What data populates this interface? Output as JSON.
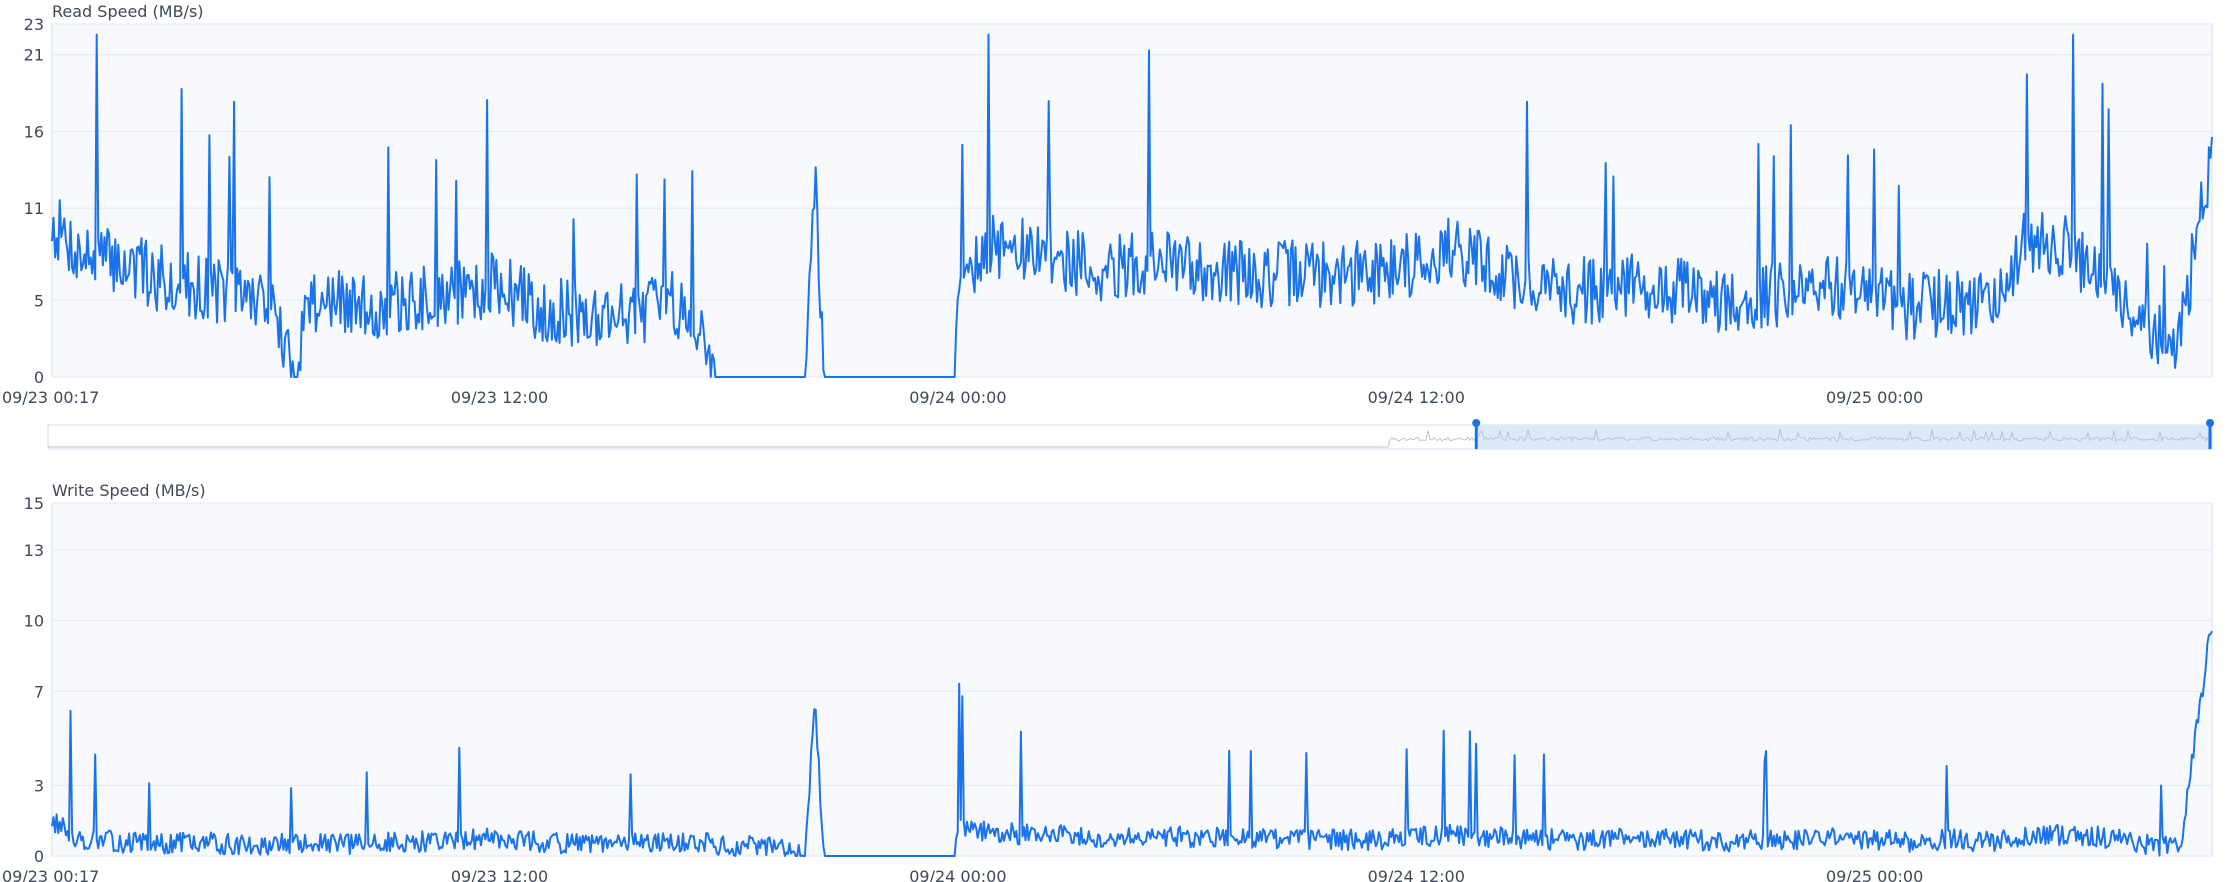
{
  "colors": {
    "line": "#1a73e8",
    "plot_bg": "#f8f9fd",
    "plot_border": "#d5deec",
    "grid": "#e5e9f1",
    "nav_fill": "#dde9f8",
    "nav_line": "#b7c5d8"
  },
  "navigator": {
    "selected_range_fraction": [
      0.66,
      1.0
    ]
  },
  "chart_data": [
    {
      "type": "line",
      "title": "Read Speed (MB/s)",
      "xlabel": "",
      "ylabel": "",
      "ylim": [
        0,
        23
      ],
      "y_ticks": [
        0,
        5,
        11,
        16,
        21,
        23
      ],
      "x_range": [
        "09/23 00:17",
        "09/25 08:50"
      ],
      "x_ticks": [
        "09/23 00:17",
        "09/23 12:00",
        "09/24 00:00",
        "09/24 12:00",
        "09/25 00:00"
      ],
      "grid": true,
      "series": [
        {
          "x": [
            "09/23 00:17",
            "09/23 01:00",
            "09/23 02:00",
            "09/23 03:00",
            "09/23 04:00",
            "09/23 05:00",
            "09/23 06:00",
            "09/23 06:35",
            "09/23 07:00",
            "09/23 08:00",
            "09/23 09:00",
            "09/23 10:00",
            "09/23 11:00",
            "09/23 12:00",
            "09/23 13:00",
            "09/23 14:00",
            "09/23 15:00",
            "09/23 16:00",
            "09/23 17:00",
            "09/23 17:40",
            "09/23 18:00",
            "09/23 19:00",
            "09/23 20:00",
            "09/23 20:15",
            "09/23 20:30",
            "09/23 21:00",
            "09/23 22:00",
            "09/23 23:00",
            "09/23 23:55",
            "09/24 00:00",
            "09/24 01:00",
            "09/24 02:00",
            "09/24 03:00",
            "09/24 04:00",
            "09/24 05:00",
            "09/24 06:00",
            "09/24 07:00",
            "09/24 08:00",
            "09/24 09:00",
            "09/24 10:00",
            "09/24 11:00",
            "09/24 12:00",
            "09/24 13:00",
            "09/24 14:00",
            "09/24 15:00",
            "09/24 16:00",
            "09/24 17:00",
            "09/24 18:00",
            "09/24 19:00",
            "09/24 20:00",
            "09/24 21:00",
            "09/24 22:00",
            "09/24 23:00",
            "09/25 00:00",
            "09/25 01:00",
            "09/25 02:00",
            "09/25 03:00",
            "09/25 04:00",
            "09/25 05:00",
            "09/25 06:00",
            "09/25 07:00",
            "09/25 08:00",
            "09/25 08:50"
          ],
          "values": [
            10,
            8,
            7.5,
            6.5,
            6,
            5.5,
            5,
            0,
            5.2,
            4.6,
            4.5,
            5,
            5.5,
            6,
            4.5,
            4,
            4.2,
            4.5,
            4.8,
            0,
            0,
            0,
            0,
            13.5,
            0,
            0,
            0,
            0,
            0,
            7,
            8.5,
            8,
            7.5,
            7,
            7.5,
            7.2,
            7,
            6.5,
            7,
            6.5,
            7,
            7.5,
            8.5,
            7,
            6,
            5.5,
            5.8,
            6,
            5.5,
            5,
            5.2,
            5.5,
            6,
            5,
            4.5,
            5,
            4.8,
            9,
            8.5,
            6,
            3,
            2.5,
            15
          ]
        }
      ]
    },
    {
      "type": "line",
      "title": "Write Speed (MB/s)",
      "xlabel": "",
      "ylabel": "",
      "ylim": [
        0,
        15
      ],
      "y_ticks": [
        0,
        3,
        7,
        10,
        13,
        15
      ],
      "x_range": [
        "09/23 00:17",
        "09/25 08:50"
      ],
      "x_ticks": [
        "09/23 00:17",
        "09/23 12:00",
        "09/24 00:00",
        "09/24 12:00",
        "09/25 00:00"
      ],
      "grid": true,
      "series": [
        {
          "x": [
            "09/23 00:17",
            "09/23 01:00",
            "09/23 02:00",
            "09/23 03:00",
            "09/23 04:00",
            "09/23 05:00",
            "09/23 06:00",
            "09/23 06:35",
            "09/23 07:00",
            "09/23 08:00",
            "09/23 09:00",
            "09/23 10:00",
            "09/23 11:00",
            "09/23 12:00",
            "09/23 13:00",
            "09/23 14:00",
            "09/23 15:00",
            "09/23 16:00",
            "09/23 17:00",
            "09/23 17:40",
            "09/23 18:00",
            "09/23 19:00",
            "09/23 20:00",
            "09/23 20:15",
            "09/23 20:30",
            "09/23 21:00",
            "09/23 22:00",
            "09/23 23:00",
            "09/23 23:55",
            "09/24 00:00",
            "09/24 01:00",
            "09/24 02:00",
            "09/24 03:00",
            "09/24 04:00",
            "09/24 05:00",
            "09/24 06:00",
            "09/24 07:00",
            "09/24 08:00",
            "09/24 09:00",
            "09/24 10:00",
            "09/24 11:00",
            "09/24 12:00",
            "09/24 13:00",
            "09/24 14:00",
            "09/24 15:00",
            "09/24 16:00",
            "09/24 17:00",
            "09/24 18:00",
            "09/24 19:00",
            "09/24 20:00",
            "09/24 21:00",
            "09/24 22:00",
            "09/24 23:00",
            "09/25 00:00",
            "09/25 01:00",
            "09/25 02:00",
            "09/25 03:00",
            "09/25 04:00",
            "09/25 05:00",
            "09/25 06:00",
            "09/25 07:00",
            "09/25 08:00",
            "09/25 08:50"
          ],
          "values": [
            1.5,
            0.7,
            0.6,
            0.5,
            0.6,
            0.5,
            0.5,
            0.5,
            0.5,
            0.5,
            0.6,
            0.6,
            0.7,
            0.8,
            0.6,
            0.5,
            0.5,
            0.6,
            0.6,
            0.5,
            0.4,
            0.4,
            0,
            6.5,
            0,
            0,
            0,
            0,
            0,
            1.2,
            1.0,
            0.9,
            0.9,
            0.8,
            0.9,
            0.8,
            0.8,
            0.8,
            0.7,
            0.7,
            0.7,
            0.8,
            0.9,
            0.8,
            0.7,
            0.7,
            0.7,
            0.8,
            0.7,
            0.6,
            0.7,
            0.7,
            0.8,
            0.7,
            0.6,
            0.7,
            0.6,
            0.8,
            0.9,
            0.8,
            0.5,
            0.4,
            10
          ]
        }
      ]
    }
  ]
}
